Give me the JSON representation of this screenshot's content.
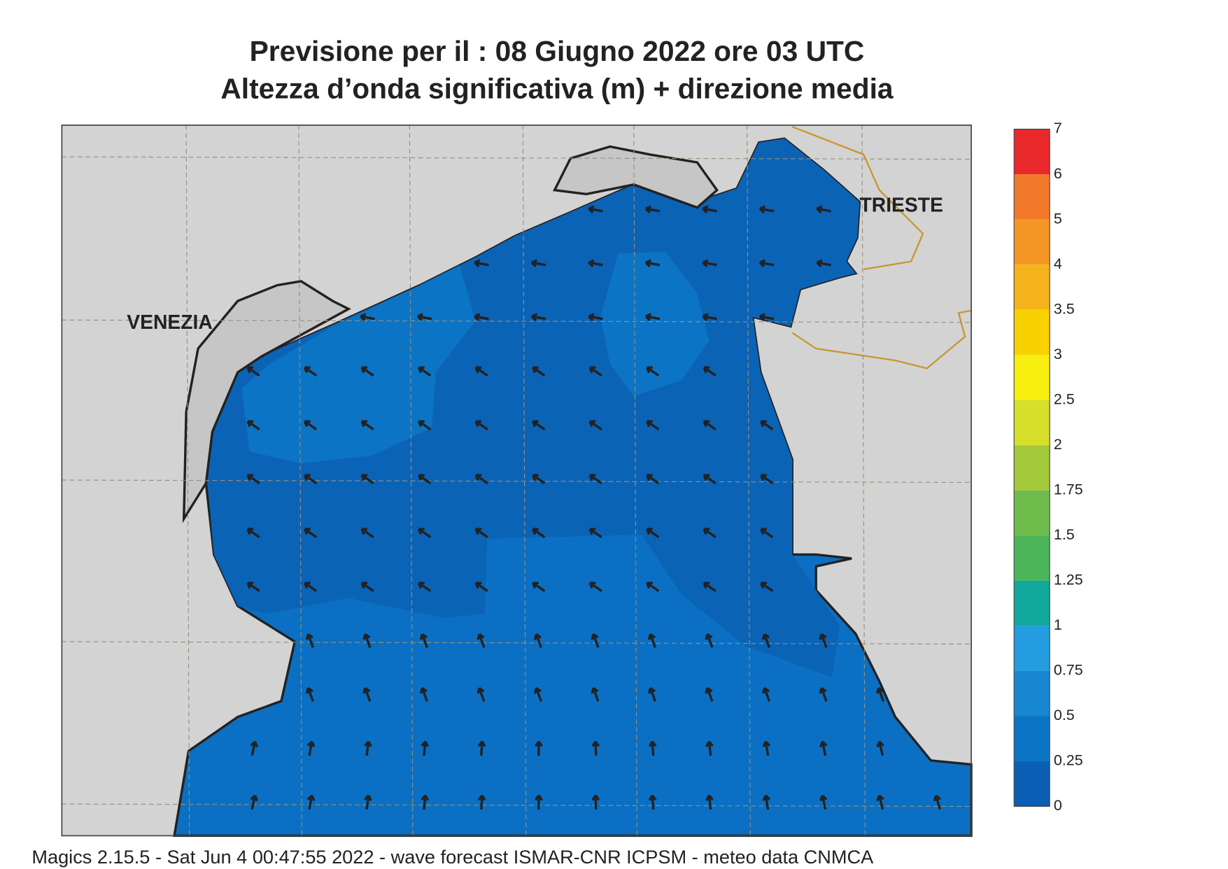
{
  "header": {
    "title": "Previsione per il  :  08   Giugno  2022   ore 03 UTC",
    "subtitle": "Altezza d’onda significativa (m) + direzione media"
  },
  "map": {
    "places": [
      {
        "label": "VENEZIA"
      },
      {
        "label": "TRIESTE"
      }
    ]
  },
  "colorbar": {
    "ticks": [
      0,
      0.25,
      0.5,
      0.75,
      1,
      1.25,
      1.5,
      1.75,
      2,
      2.5,
      3,
      3.5,
      4,
      5,
      6,
      7
    ],
    "colors": [
      "#0a5fb4",
      "#0c74c4",
      "#1787d2",
      "#239ddf",
      "#10a89c",
      "#4cb55a",
      "#6fbc4c",
      "#a3c93a",
      "#d6df2a",
      "#f7ef10",
      "#f8d200",
      "#f6b41c",
      "#f59726",
      "#f2792a",
      "#e8282a",
      "#e91469"
    ]
  },
  "footer": "Magics 2.15.5 - Sat Jun  4 00:47:55 2022 - wave forecast  ISMAR-CNR  ICPSM - meteo data   CNMCA"
}
